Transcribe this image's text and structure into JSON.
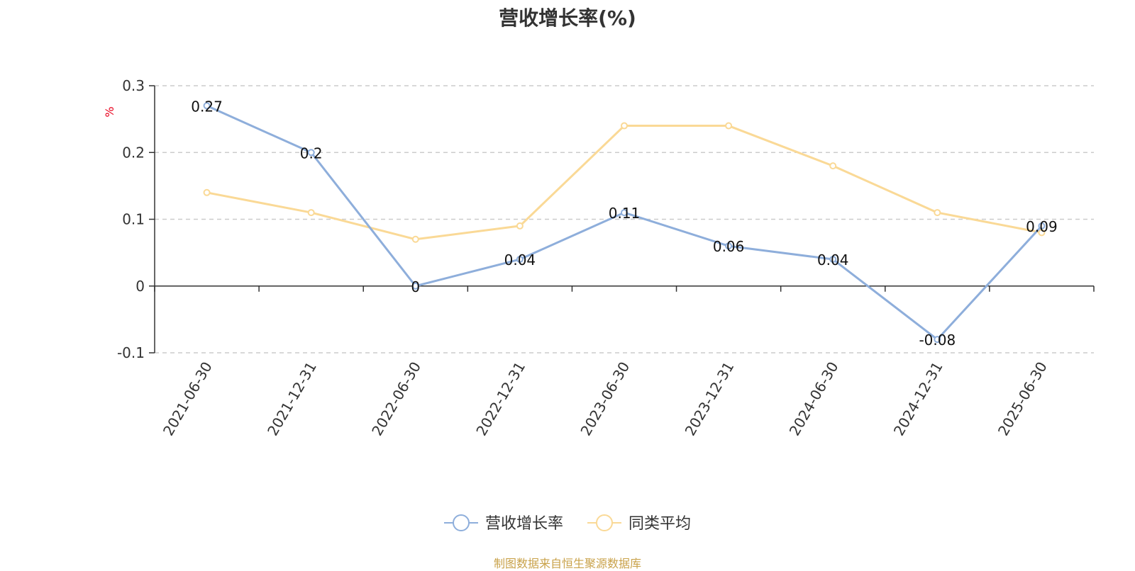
{
  "chart_data": {
    "type": "line",
    "title": "营收增长率(%)",
    "ylabel": "%",
    "xlabel": "",
    "categories": [
      "2021-06-30",
      "2021-12-31",
      "2022-06-30",
      "2022-12-31",
      "2023-06-30",
      "2023-12-31",
      "2024-06-30",
      "2024-12-31",
      "2025-06-30"
    ],
    "ylim": [
      -0.1,
      0.3
    ],
    "yticks": [
      -0.1,
      0,
      0.1,
      0.2,
      0.3
    ],
    "ytick_labels": [
      "-0.1",
      "0",
      "0.1",
      "0.2",
      "0.3"
    ],
    "grid": true,
    "legend_position": "bottom-center",
    "series": [
      {
        "name": "营收增长率",
        "color": "#8eaedb",
        "values": [
          0.27,
          0.2,
          0,
          0.04,
          0.11,
          0.06,
          0.04,
          -0.08,
          0.09
        ],
        "data_labels": [
          "0.27",
          "0.2",
          "0",
          "0.04",
          "0.11",
          "0.06",
          "0.04",
          "-0.08",
          "0.09"
        ]
      },
      {
        "name": "同类平均",
        "color": "#fad996",
        "values": [
          0.14,
          0.11,
          0.07,
          0.09,
          0.24,
          0.24,
          0.18,
          0.11,
          0.08
        ]
      }
    ]
  },
  "source_note": "制图数据来自恒生聚源数据库"
}
